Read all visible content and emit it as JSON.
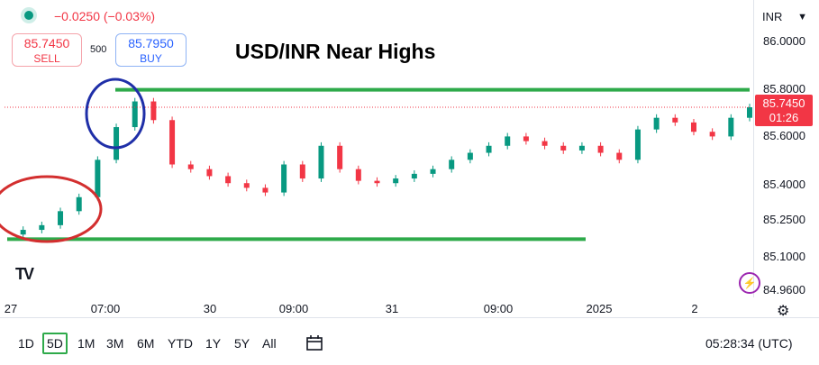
{
  "header": {
    "change_text": "−0.0250 (−0.03%)",
    "sell_price": "85.7450",
    "sell_label": "SELL",
    "spread": "500",
    "buy_price": "85.7950",
    "buy_label": "BUY"
  },
  "currency_select": "INR",
  "chevron_icon": "chevron-down-icon",
  "current_price_tag": {
    "price": "85.7450",
    "countdown": "01:26"
  },
  "bottom_toolbar": {
    "ranges": [
      "1D",
      "5D",
      "1M",
      "3M",
      "6M",
      "YTD",
      "1Y",
      "5Y",
      "All"
    ],
    "active_range": "5D",
    "compare_icon": "compare-calendar-icon",
    "clock": "05:28:34 (UTC)"
  },
  "icons": {
    "settings": "gear-icon",
    "logo": "tradingview-logo-icon",
    "bolt": "bolt-icon"
  },
  "colors": {
    "up": "#089981",
    "down": "#f23645",
    "annotation_line": "#2eaa4a",
    "circle_blue": "#1f2fa8",
    "circle_red": "#d32f2f"
  },
  "chart_data": {
    "type": "line",
    "title": "USD/INR Near Highs",
    "x_tick_labels": [
      "27",
      "07:00",
      "30",
      "09:00",
      "31",
      "09:00",
      "2025",
      "2"
    ],
    "y_tick_labels": [
      "86.0000",
      "85.8000",
      "85.6000",
      "85.4000",
      "85.2500",
      "85.1000",
      "84.9600"
    ],
    "ylim": [
      84.95,
      86.05
    ],
    "x": [
      0,
      0.5,
      1,
      1.5,
      2,
      2.5,
      3,
      3.5,
      4,
      4.5,
      5,
      5.5,
      6,
      6.5,
      7,
      7.5,
      8,
      8.5,
      9,
      9.5,
      10,
      10.5,
      11,
      11.5,
      12,
      12.5,
      13,
      13.5,
      14,
      14.5,
      15,
      15.5,
      16,
      16.5,
      17,
      17.5,
      18,
      18.5,
      19,
      19.5,
      20
    ],
    "series": [
      {
        "values": [
          85.2,
          85.22,
          85.24,
          85.3,
          85.36,
          85.52,
          85.66,
          85.77,
          85.69,
          85.5,
          85.48,
          85.45,
          85.42,
          85.4,
          85.38,
          85.5,
          85.44,
          85.58,
          85.48,
          85.43,
          85.42,
          85.44,
          85.46,
          85.48,
          85.52,
          85.55,
          85.58,
          85.62,
          85.6,
          85.58,
          85.56,
          85.58,
          85.55,
          85.52,
          85.65,
          85.7,
          85.68,
          85.64,
          85.62,
          85.7,
          85.745
        ]
      }
    ],
    "annotations": {
      "resistance_level": 85.82,
      "support_level": 85.18
    },
    "grid": true
  }
}
